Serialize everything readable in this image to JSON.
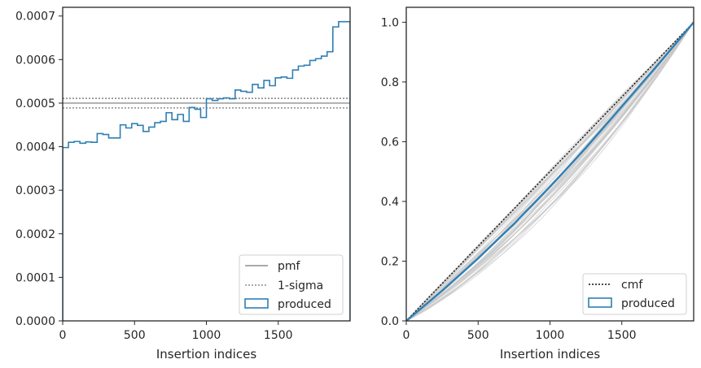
{
  "colors": {
    "hist": "#2f7fb4",
    "pmf": "#777777",
    "sigma": "#777777",
    "cmf": "#111111",
    "grey_lines": "#c8c8c8"
  },
  "chart_data": [
    {
      "type": "line",
      "subtype": "step-histogram",
      "xlabel": "Insertion indices",
      "ylabel": "",
      "xlim": [
        0,
        2000
      ],
      "ylim": [
        0,
        0.00072
      ],
      "xticks": [
        0,
        500,
        1000,
        1500
      ],
      "xtick_labels": [
        "0",
        "500",
        "1000",
        "1500"
      ],
      "yticks": [
        0,
        0.0001,
        0.0002,
        0.0003,
        0.0004,
        0.0005,
        0.0006,
        0.0007
      ],
      "ytick_labels": [
        "0.0000",
        "0.0001",
        "0.0002",
        "0.0003",
        "0.0004",
        "0.0005",
        "0.0006",
        "0.0007"
      ],
      "grid": false,
      "legend_position": "bottom-right",
      "pmf": 0.0005,
      "sigma_band": [
        0.000489,
        0.000511
      ],
      "bin_width": 40,
      "bin_edges_start": 0,
      "produced_bins": [
        0.000398,
        0.00041,
        0.000412,
        0.000408,
        0.000411,
        0.00041,
        0.00043,
        0.000428,
        0.00042,
        0.00042,
        0.00045,
        0.000443,
        0.000453,
        0.000449,
        0.000435,
        0.000445,
        0.000455,
        0.000458,
        0.000478,
        0.000462,
        0.000474,
        0.000458,
        0.00049,
        0.000486,
        0.000467,
        0.00051,
        0.000506,
        0.00051,
        0.000512,
        0.00051,
        0.00053,
        0.000527,
        0.000525,
        0.000543,
        0.000535,
        0.000552,
        0.00054,
        0.000558,
        0.00056,
        0.000557,
        0.000576,
        0.000585,
        0.000587,
        0.000598,
        0.000602,
        0.000608,
        0.000618,
        0.000675,
        0.000687,
        0.000687
      ],
      "legend": [
        {
          "label": "pmf",
          "style": "solid"
        },
        {
          "label": "1-sigma",
          "style": "dotted"
        },
        {
          "label": "produced",
          "style": "patch"
        }
      ]
    },
    {
      "type": "line",
      "xlabel": "Insertion indices",
      "ylabel": "",
      "xlim": [
        0,
        2000
      ],
      "ylim": [
        0,
        1.05
      ],
      "xticks": [
        0,
        500,
        1000,
        1500
      ],
      "xtick_labels": [
        "0",
        "500",
        "1000",
        "1500"
      ],
      "yticks": [
        0,
        0.2,
        0.4,
        0.6,
        0.8,
        1.0
      ],
      "ytick_labels": [
        "0.0",
        "0.2",
        "0.4",
        "0.6",
        "0.8",
        "1.0"
      ],
      "grid": false,
      "legend_position": "bottom-right",
      "cmf": {
        "x": [
          0,
          2000
        ],
        "y": [
          0,
          1.0
        ]
      },
      "produced": {
        "x": [
          0,
          250,
          500,
          750,
          1000,
          1250,
          1500,
          1750,
          2000
        ],
        "y": [
          0,
          0.101,
          0.209,
          0.325,
          0.449,
          0.58,
          0.718,
          0.857,
          1.0
        ]
      },
      "grey_curve_count": 45,
      "grey_curve_y_at_1000_range": [
        0.38,
        0.51
      ],
      "legend": [
        {
          "label": "cmf",
          "style": "dotted"
        },
        {
          "label": "produced",
          "style": "patch"
        }
      ]
    }
  ]
}
